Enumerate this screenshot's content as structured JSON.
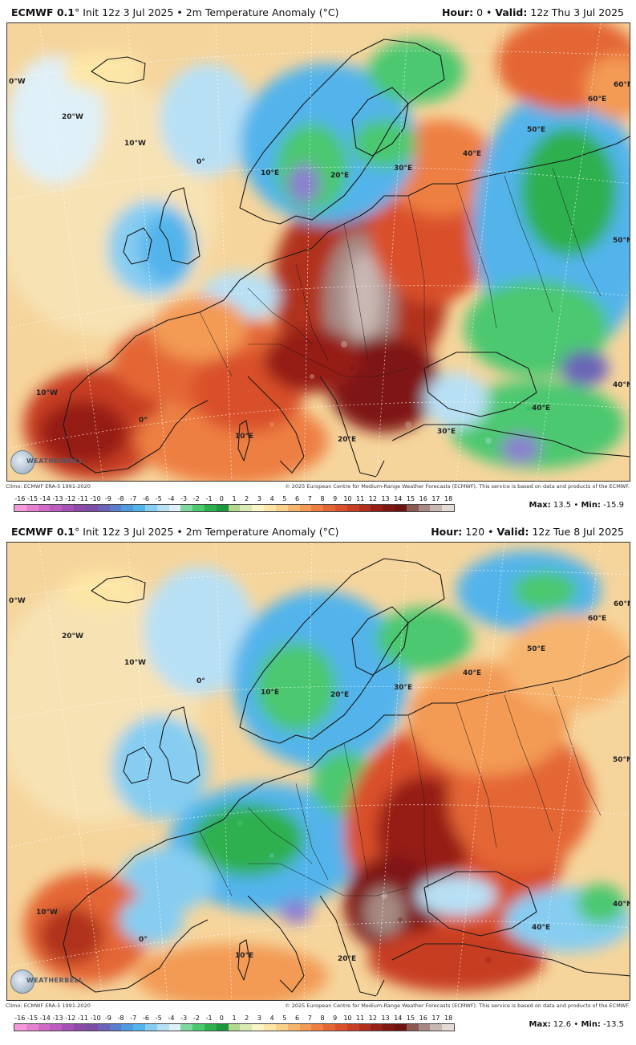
{
  "colors": {
    "scale": [
      "#f39bd8",
      "#e681d0",
      "#d36ac9",
      "#be5bc1",
      "#a550b6",
      "#8c4aa9",
      "#7a4ea5",
      "#6a63b8",
      "#5a7dcd",
      "#4f9ae0",
      "#52b4eb",
      "#86cdf1",
      "#b8e0f5",
      "#dff0f8",
      "#7fd8a0",
      "#4cc870",
      "#2fb04f",
      "#1d963c",
      "#b3d98e",
      "#d7ebb3",
      "#fbf4c6",
      "#fde6a6",
      "#fbd089",
      "#f7b46e",
      "#f39a55",
      "#ee7f43",
      "#e46635",
      "#d9502b",
      "#c73e23",
      "#b0301c",
      "#961f17",
      "#7f1712",
      "#6d140f",
      "#8a5a52",
      "#a68a84",
      "#c8b7b3",
      "#e6dad6"
    ]
  },
  "scale_labels": [
    "-16",
    "-15",
    "-14",
    "-13",
    "-12",
    "-11",
    "-10",
    "-9",
    "-8",
    "-7",
    "-6",
    "-5",
    "-4",
    "-3",
    "-2",
    "-1",
    "0",
    "1",
    "2",
    "3",
    "4",
    "5",
    "6",
    "7",
    "8",
    "9",
    "10",
    "11",
    "12",
    "13",
    "14",
    "15",
    "16",
    "17",
    "18"
  ],
  "panels": [
    {
      "model": "ECMWF 0.1",
      "rest": "° Init 12z 3 Jul 2025 • 2m Temperature Anomaly (°C)",
      "hour_label": "Hour:",
      "hour": "0",
      "sep": "•",
      "valid_label": "Valid:",
      "valid": "12z Thu 3 Jul 2025",
      "max_label": "Max:",
      "max": "13.5",
      "min_label": "Min:",
      "min": "-15.9",
      "climo": "Climo: ECMWF ERA-5 1991-2020",
      "credit": "© 2025 European Centre for Medium-Range Weather Forecasts (ECMWF). This service is based on data and products of the ECMWF."
    },
    {
      "model": "ECMWF 0.1",
      "rest": "° Init 12z 3 Jul 2025 • 2m Temperature Anomaly (°C)",
      "hour_label": "Hour:",
      "hour": "120",
      "sep": "•",
      "valid_label": "Valid:",
      "valid": "12z Tue 8 Jul 2025",
      "max_label": "Max:",
      "max": "12.6",
      "min_label": "Min:",
      "min": "-13.5",
      "climo": "Climo: ECMWF ERA-5 1991-2020",
      "credit": "© 2025 European Centre for Medium-Range Weather Forecasts (ECMWF). This service is based on data and products of the ECMWF."
    }
  ],
  "grid_labels": {
    "w0": "0°W",
    "w20": "20°W",
    "w10": "10°W",
    "e0": "0°",
    "e10": "10°E",
    "e20": "20°E",
    "e30": "30°E",
    "e40": "40°E",
    "e50": "50°E",
    "e60": "60°E",
    "n60": "60°N",
    "n50": "50°N",
    "n40": "40°N",
    "n30": "30°E",
    "w10b": "10°W",
    "e0b": "0°",
    "e10b": "10°E",
    "e20b": "20°E",
    "e40b": "40°E"
  },
  "logo_text": "WEATHERBELL"
}
